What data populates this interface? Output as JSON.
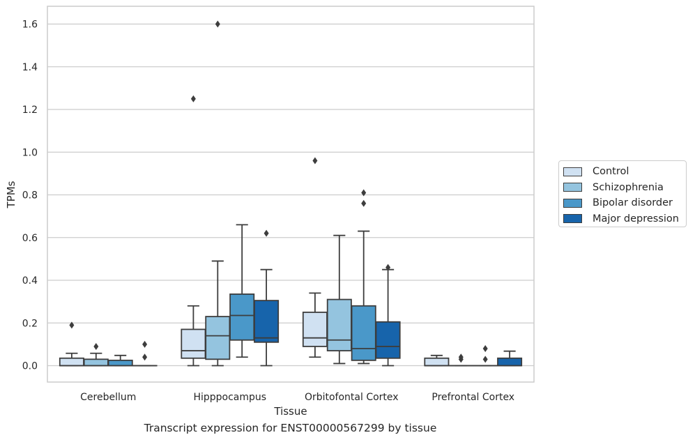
{
  "chart_data": {
    "type": "box",
    "xlabel": "Tissue",
    "ylabel": "TPMs",
    "ylim": [
      -0.078,
      1.683
    ],
    "yticks": [
      0.0,
      0.2,
      0.4,
      0.6,
      0.8,
      1.0,
      1.2,
      1.4,
      1.6
    ],
    "ytick_labels": [
      "0.0",
      "0.2",
      "0.4",
      "0.6",
      "0.8",
      "1.0",
      "1.2",
      "1.4",
      "1.6"
    ],
    "categories": [
      "Cerebellum",
      "Hipppocampus",
      "Orbitofontal Cortex",
      "Prefrontal Cortex"
    ],
    "grid": true,
    "legend_position": "right",
    "series": [
      {
        "name": "Control",
        "color": "#d0e1f2",
        "boxes": [
          {
            "q1": 0.0,
            "median": 0.0,
            "q3": 0.035,
            "whisker_low": 0.0,
            "whisker_high": 0.058,
            "outliers": [
              0.19
            ]
          },
          {
            "q1": 0.035,
            "median": 0.07,
            "q3": 0.17,
            "whisker_low": 0.0,
            "whisker_high": 0.28,
            "outliers": [
              1.25
            ]
          },
          {
            "q1": 0.09,
            "median": 0.13,
            "q3": 0.25,
            "whisker_low": 0.04,
            "whisker_high": 0.34,
            "outliers": [
              0.96
            ]
          },
          {
            "q1": 0.0,
            "median": 0.0,
            "q3": 0.035,
            "whisker_low": 0.0,
            "whisker_high": 0.048,
            "outliers": []
          }
        ]
      },
      {
        "name": "Schizophrenia",
        "color": "#94c4df",
        "boxes": [
          {
            "q1": 0.0,
            "median": 0.0,
            "q3": 0.03,
            "whisker_low": 0.0,
            "whisker_high": 0.058,
            "outliers": [
              0.09
            ]
          },
          {
            "q1": 0.03,
            "median": 0.14,
            "q3": 0.23,
            "whisker_low": 0.0,
            "whisker_high": 0.49,
            "outliers": [
              1.6
            ]
          },
          {
            "q1": 0.07,
            "median": 0.12,
            "q3": 0.31,
            "whisker_low": 0.01,
            "whisker_high": 0.61,
            "outliers": []
          },
          {
            "q1": 0.0,
            "median": 0.0,
            "q3": 0.0,
            "whisker_low": 0.0,
            "whisker_high": 0.0,
            "outliers": [
              0.03,
              0.04
            ]
          }
        ]
      },
      {
        "name": "Bipolar disorder",
        "color": "#4a98c9",
        "boxes": [
          {
            "q1": 0.0,
            "median": 0.0,
            "q3": 0.025,
            "whisker_low": 0.0,
            "whisker_high": 0.048,
            "outliers": []
          },
          {
            "q1": 0.12,
            "median": 0.235,
            "q3": 0.335,
            "whisker_low": 0.04,
            "whisker_high": 0.66,
            "outliers": []
          },
          {
            "q1": 0.025,
            "median": 0.08,
            "q3": 0.28,
            "whisker_low": 0.01,
            "whisker_high": 0.63,
            "outliers": [
              0.76,
              0.81
            ]
          },
          {
            "q1": 0.0,
            "median": 0.0,
            "q3": 0.0,
            "whisker_low": 0.0,
            "whisker_high": 0.0,
            "outliers": [
              0.03,
              0.08
            ]
          }
        ]
      },
      {
        "name": "Major depression",
        "color": "#1764ab",
        "boxes": [
          {
            "q1": 0.0,
            "median": 0.0,
            "q3": 0.0,
            "whisker_low": 0.0,
            "whisker_high": 0.0,
            "outliers": [
              0.04,
              0.1
            ]
          },
          {
            "q1": 0.11,
            "median": 0.13,
            "q3": 0.305,
            "whisker_low": 0.0,
            "whisker_high": 0.45,
            "outliers": [
              0.62
            ]
          },
          {
            "q1": 0.035,
            "median": 0.09,
            "q3": 0.205,
            "whisker_low": 0.0,
            "whisker_high": 0.45,
            "outliers": [
              0.46
            ]
          },
          {
            "q1": 0.0,
            "median": 0.0,
            "q3": 0.035,
            "whisker_low": 0.0,
            "whisker_high": 0.068,
            "outliers": []
          }
        ]
      }
    ],
    "caption": "Transcript expression for ENST00000567299 by tissue"
  },
  "legend": {
    "items": [
      {
        "label": "Control",
        "color": "#d0e1f2"
      },
      {
        "label": "Schizophrenia",
        "color": "#94c4df"
      },
      {
        "label": "Bipolar disorder",
        "color": "#4a98c9"
      },
      {
        "label": "Major depression",
        "color": "#1764ab"
      }
    ]
  }
}
